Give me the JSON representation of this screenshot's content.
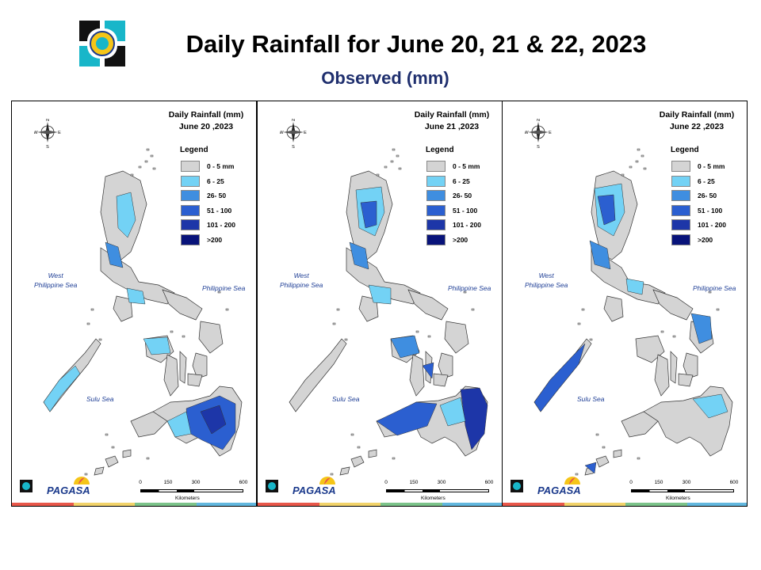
{
  "header": {
    "title": "Daily Rainfall for June 20, 21 & 22, 2023",
    "subtitle": "Observed (mm)"
  },
  "legend": {
    "title": "Legend",
    "items": [
      {
        "label": "0 - 5 mm",
        "color": "#d4d4d4"
      },
      {
        "label": "6 - 25",
        "color": "#73d2f5"
      },
      {
        "label": "26- 50",
        "color": "#3f8ee0"
      },
      {
        "label": "51 - 100",
        "color": "#2b5fd0"
      },
      {
        "label": "101 - 200",
        "color": "#1d36a8"
      },
      {
        "label": ">200",
        "color": "#08137a"
      }
    ]
  },
  "panels": [
    {
      "heading": "Daily Rainfall (mm)",
      "date": "June 20 ,2023"
    },
    {
      "heading": "Daily Rainfall (mm)",
      "date": "June 21 ,2023"
    },
    {
      "heading": "Daily Rainfall (mm)",
      "date": "June 22 ,2023"
    }
  ],
  "labels": {
    "west_sea": "West\nPhilippine Sea",
    "philippine_sea": "Philippine Sea",
    "sulu_sea": "Sulu Sea",
    "compass": {
      "n": "N",
      "s": "S",
      "e": "E",
      "w": "W"
    }
  },
  "scale": {
    "ticks": [
      "0",
      "150",
      "300",
      "600"
    ],
    "unit": "Kilometers"
  },
  "branding": {
    "agency": "PAGASA",
    "stripe_colors": [
      "#e8574a",
      "#f2d36a",
      "#7cc38a",
      "#62b7de"
    ]
  },
  "map_data": {
    "colors": {
      "land": "#d4d4d4",
      "r6_25": "#73d2f5",
      "r26_50": "#3f8ee0",
      "r51_100": "#2b5fd0",
      "r101_200": "#1d36a8"
    }
  }
}
